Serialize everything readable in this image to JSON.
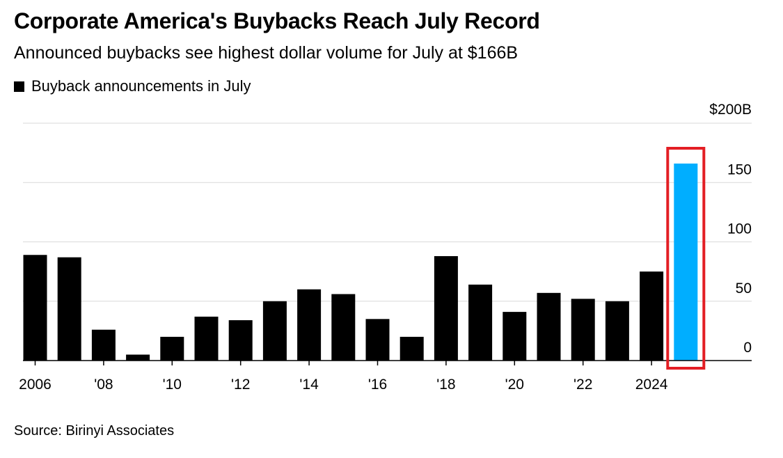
{
  "chart_data": {
    "type": "bar",
    "title": "Corporate America's Buybacks Reach July Record",
    "subtitle": "Announced buybacks see highest dollar volume for July at $166B",
    "legend": [
      "Buyback announcements in July"
    ],
    "legend_placement": "top-left",
    "categories": [
      "2006",
      "2007",
      "2008",
      "2009",
      "2010",
      "2011",
      "2012",
      "2013",
      "2014",
      "2015",
      "2016",
      "2017",
      "2018",
      "2019",
      "2020",
      "2021",
      "2022",
      "2023",
      "2024",
      "2025"
    ],
    "x_tick_labels": [
      "2006",
      "'08",
      "'10",
      "'12",
      "'14",
      "'16",
      "'18",
      "'20",
      "'22",
      "2024"
    ],
    "series": [
      {
        "name": "Buyback announcements in July",
        "values": [
          89,
          87,
          26,
          5,
          20,
          37,
          34,
          50,
          60,
          56,
          35,
          20,
          88,
          64,
          41,
          57,
          52,
          50,
          75,
          166
        ]
      }
    ],
    "highlight": {
      "category": "2025",
      "color": "#00aeff",
      "outline_color": "#e31e24"
    },
    "bar_color": "#000000",
    "ylim": [
      0,
      200
    ],
    "y_ticks": [
      0,
      50,
      100,
      150,
      200
    ],
    "y_tick_labels": [
      "0",
      "50",
      "100",
      "150",
      "$200B"
    ],
    "y_axis_side": "right",
    "grid": true,
    "source": "Source: Birinyi Associates"
  }
}
